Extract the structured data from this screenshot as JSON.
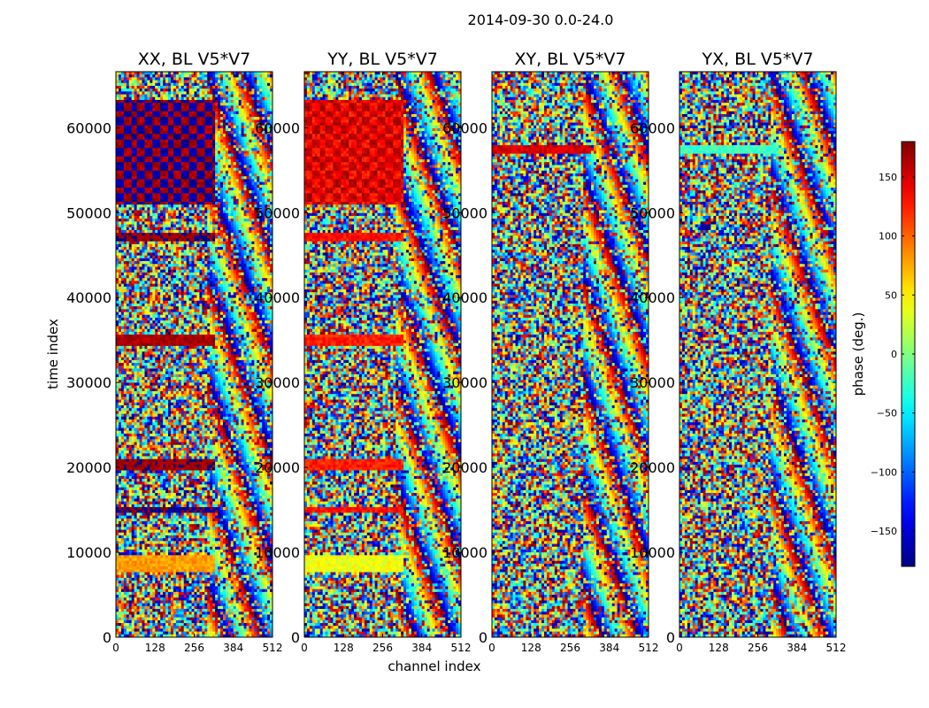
{
  "figure": {
    "suptitle": "2014-09-30 0.0-24.0"
  },
  "chart_data": [
    {
      "type": "heatmap",
      "title": "XX, BL V5*V7",
      "xlabel": "",
      "ylabel": "time index",
      "xlim": [
        0,
        512
      ],
      "ylim": [
        0,
        66600
      ],
      "xticks": [
        0,
        128,
        256,
        384,
        512
      ],
      "yticks": [
        0,
        10000,
        20000,
        30000,
        40000,
        50000,
        60000
      ],
      "coherent_bands": [
        {
          "y0": 51000,
          "y1": 63200,
          "x0": 0,
          "x1": 320,
          "phase": 165,
          "alt_phase": -165,
          "stripes": true
        },
        {
          "y0": 46700,
          "y1": 47500,
          "x0": 0,
          "x1": 320,
          "phase": 175
        },
        {
          "y0": 34300,
          "y1": 35600,
          "x0": 0,
          "x1": 320,
          "phase": 165
        },
        {
          "y0": 19700,
          "y1": 21100,
          "x0": 0,
          "x1": 320,
          "phase": 170
        },
        {
          "y0": 14700,
          "y1": 15400,
          "x0": 0,
          "x1": 320,
          "phase": -175
        },
        {
          "y0": 7700,
          "y1": 9600,
          "x0": 0,
          "x1": 320,
          "phase": 80
        }
      ]
    },
    {
      "type": "heatmap",
      "title": "YY, BL V5*V7",
      "xlabel": "channel index",
      "ylabel": "",
      "xlim": [
        0,
        512
      ],
      "ylim": [
        0,
        66600
      ],
      "xticks": [
        0,
        128,
        256,
        384,
        512
      ],
      "yticks": [
        0,
        10000,
        20000,
        30000,
        40000,
        50000,
        60000
      ],
      "coherent_bands": [
        {
          "y0": 51000,
          "y1": 63200,
          "x0": 0,
          "x1": 320,
          "phase": 130,
          "alt_phase": 160,
          "stripes": true
        },
        {
          "y0": 46700,
          "y1": 47500,
          "x0": 0,
          "x1": 320,
          "phase": 130
        },
        {
          "y0": 34300,
          "y1": 35600,
          "x0": 0,
          "x1": 320,
          "phase": 125
        },
        {
          "y0": 19700,
          "y1": 21100,
          "x0": 0,
          "x1": 320,
          "phase": 125
        },
        {
          "y0": 14700,
          "y1": 15400,
          "x0": 0,
          "x1": 320,
          "phase": 130
        },
        {
          "y0": 7700,
          "y1": 9600,
          "x0": 0,
          "x1": 320,
          "phase": 40
        }
      ]
    },
    {
      "type": "heatmap",
      "title": "XY, BL V5*V7",
      "xlabel": "",
      "ylabel": "",
      "xlim": [
        0,
        512
      ],
      "ylim": [
        0,
        66600
      ],
      "xticks": [
        0,
        128,
        256,
        384,
        512
      ],
      "yticks": [
        0,
        10000,
        20000,
        30000,
        40000,
        50000,
        60000
      ],
      "coherent_bands": [
        {
          "y0": 57000,
          "y1": 57800,
          "x0": 0,
          "x1": 320,
          "phase": 150
        }
      ]
    },
    {
      "type": "heatmap",
      "title": "YX, BL V5*V7",
      "xlabel": "",
      "ylabel": "",
      "xlim": [
        0,
        512
      ],
      "ylim": [
        0,
        66600
      ],
      "xticks": [
        0,
        128,
        256,
        384,
        512
      ],
      "yticks": [
        0,
        10000,
        20000,
        30000,
        40000,
        50000,
        60000
      ],
      "coherent_bands": [
        {
          "y0": 57000,
          "y1": 57800,
          "x0": 0,
          "x1": 320,
          "phase": -25
        }
      ]
    }
  ],
  "colorbar": {
    "label": "phase (deg.)",
    "vmin": -180,
    "vmax": 180,
    "ticks": [
      -150,
      -100,
      -50,
      0,
      50,
      100,
      150
    ],
    "tick_labels": [
      "−150",
      "−100",
      "−50",
      "0",
      "50",
      "100",
      "150"
    ],
    "colormap": "jet"
  }
}
